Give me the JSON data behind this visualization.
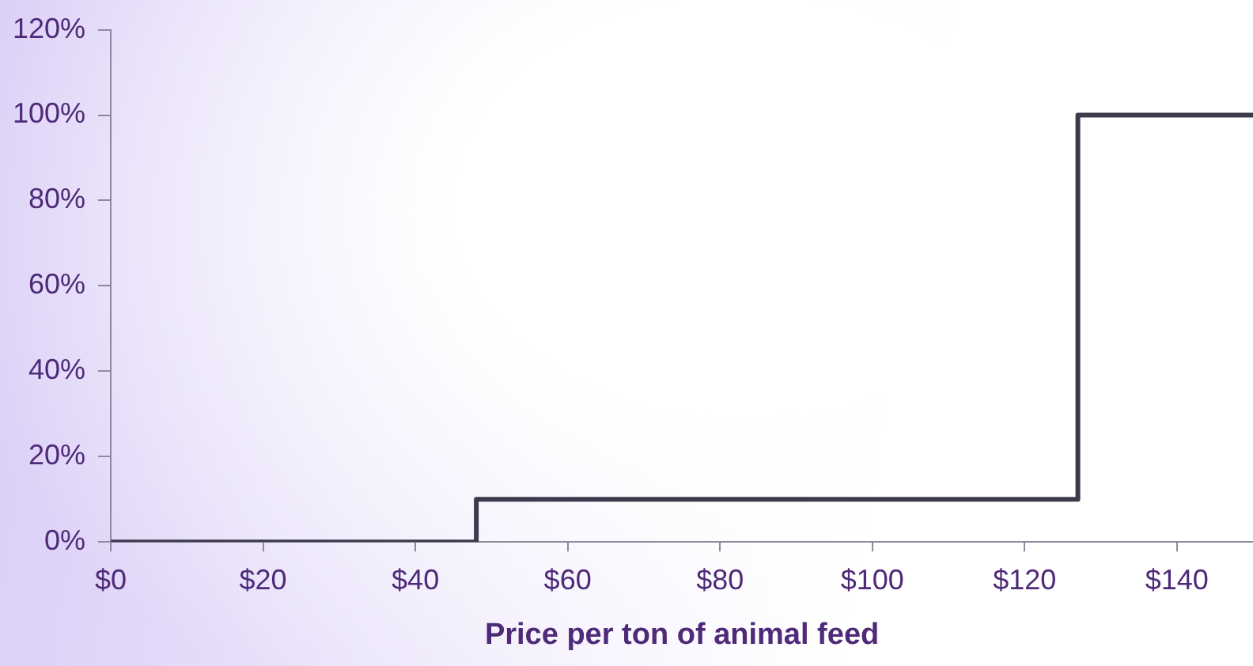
{
  "chart_data": {
    "type": "step",
    "xlabel": "Price per ton of animal feed",
    "x": [
      0,
      48,
      127,
      150
    ],
    "series": [
      {
        "color": "#3d3a4c",
        "values": [
          0,
          10,
          100,
          100
        ]
      }
    ],
    "xlim": [
      0,
      150
    ],
    "xticks": [
      {
        "value": 0,
        "label": "$0"
      },
      {
        "value": 20,
        "label": "$20"
      },
      {
        "value": 40,
        "label": "$40"
      },
      {
        "value": 60,
        "label": "$60"
      },
      {
        "value": 80,
        "label": "$80"
      },
      {
        "value": 100,
        "label": "$100"
      },
      {
        "value": 120,
        "label": "$120"
      },
      {
        "value": 140,
        "label": "$140"
      }
    ],
    "ylim": [
      0,
      120
    ],
    "yticks": [
      {
        "value": 0,
        "label": "0%"
      },
      {
        "value": 20,
        "label": "20%"
      },
      {
        "value": 40,
        "label": "40%"
      },
      {
        "value": 60,
        "label": "60%"
      },
      {
        "value": 80,
        "label": "80%"
      },
      {
        "value": 100,
        "label": "100%"
      },
      {
        "value": 120,
        "label": "120%"
      }
    ],
    "grid": false,
    "legend": false,
    "marker": "none",
    "line_style": "solid"
  }
}
